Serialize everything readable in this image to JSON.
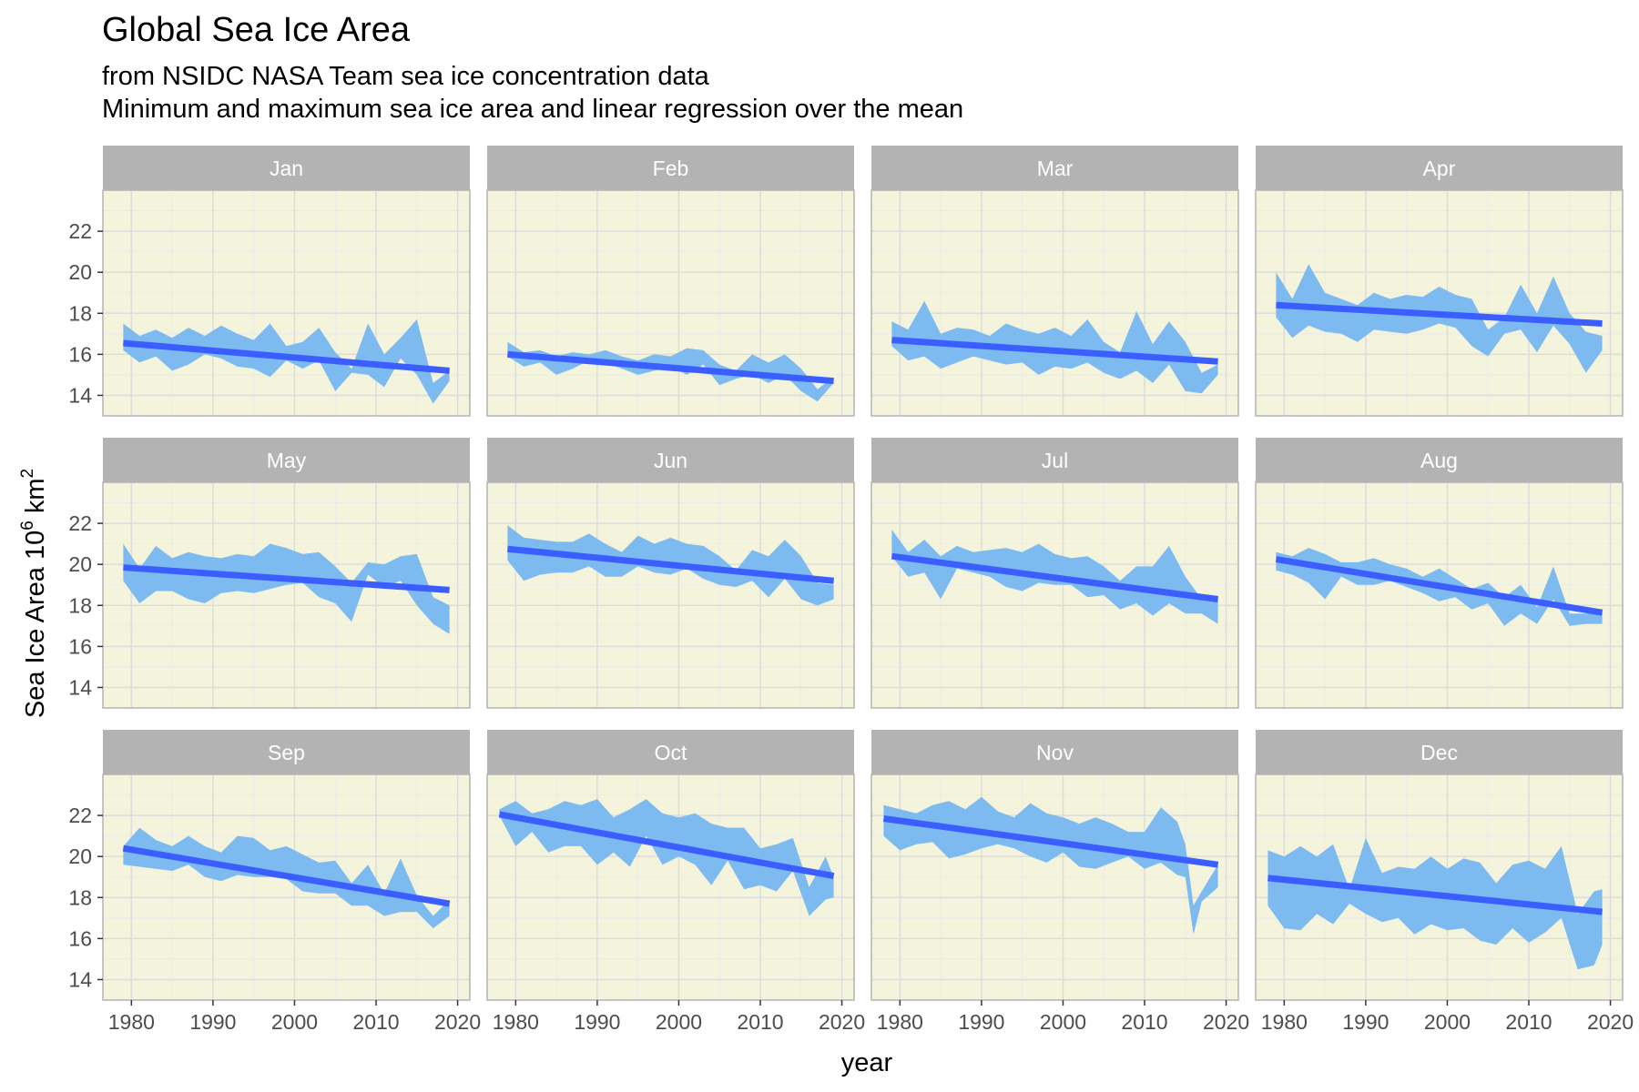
{
  "title": "Global Sea Ice Area",
  "subtitle_line1": "from NSIDC NASA Team sea ice concentration data",
  "subtitle_line2": "Minimum and maximum sea ice area and linear regression over the mean",
  "x_axis_title": "year",
  "y_axis_title_main": "Sea Ice Area 10",
  "y_axis_title_exp1": "6",
  "y_axis_title_unit": " km",
  "y_axis_title_exp2": "2",
  "colors": {
    "panel_background": "#f4f4dc",
    "strip_background": "#b3b3b3",
    "ribbon": "#7cbaf0",
    "regression_line": "#3a5eff",
    "grid_major": "#dcdcdc",
    "grid_minor": "#ebebeb",
    "panel_border": "#b3b3b3"
  },
  "chart_data": {
    "type": "area",
    "facet_layout": "4 columns x 3 rows",
    "xlim": [
      1976.5,
      2021.5
    ],
    "ylim": [
      13.0,
      24.0
    ],
    "x_ticks": [
      1980,
      1990,
      2000,
      2010,
      2020
    ],
    "y_ticks": [
      14,
      16,
      18,
      20,
      22
    ],
    "grid": true,
    "panels": [
      {
        "label": "Jan",
        "years": [
          1979,
          1981,
          1983,
          1985,
          1987,
          1989,
          1991,
          1993,
          1995,
          1997,
          1999,
          2001,
          2003,
          2005,
          2007,
          2009,
          2011,
          2013,
          2015,
          2017,
          2019
        ],
        "min": [
          16.2,
          15.6,
          15.9,
          15.2,
          15.5,
          16.0,
          15.8,
          15.4,
          15.3,
          14.9,
          15.7,
          15.3,
          15.7,
          14.2,
          15.1,
          15.0,
          14.4,
          15.8,
          15.0,
          13.6,
          14.7
        ],
        "max": [
          17.5,
          16.9,
          17.2,
          16.8,
          17.3,
          16.9,
          17.4,
          17.0,
          16.7,
          17.5,
          16.4,
          16.6,
          17.3,
          16.1,
          15.3,
          17.5,
          16.0,
          16.8,
          17.7,
          14.6,
          15.2
        ],
        "trend": [
          16.55,
          15.2
        ]
      },
      {
        "label": "Feb",
        "years": [
          1979,
          1981,
          1983,
          1985,
          1987,
          1989,
          1991,
          1993,
          1995,
          1997,
          1999,
          2001,
          2003,
          2005,
          2007,
          2009,
          2011,
          2013,
          2015,
          2017,
          2019
        ],
        "min": [
          15.9,
          15.4,
          15.6,
          15.0,
          15.3,
          15.7,
          15.6,
          15.3,
          15.0,
          15.2,
          15.4,
          15.0,
          15.5,
          14.5,
          14.8,
          15.0,
          14.6,
          15.0,
          14.2,
          13.7,
          14.6
        ],
        "max": [
          16.6,
          16.1,
          16.2,
          15.9,
          16.1,
          16.0,
          16.2,
          15.9,
          15.7,
          16.0,
          15.9,
          16.3,
          16.2,
          15.5,
          15.2,
          16.0,
          15.6,
          16.0,
          15.3,
          14.3,
          14.9
        ],
        "trend": [
          16.0,
          14.7
        ]
      },
      {
        "label": "Mar",
        "years": [
          1979,
          1981,
          1983,
          1985,
          1987,
          1989,
          1991,
          1993,
          1995,
          1997,
          1999,
          2001,
          2003,
          2005,
          2007,
          2009,
          2011,
          2013,
          2015,
          2017,
          2019
        ],
        "min": [
          16.4,
          15.7,
          15.9,
          15.3,
          15.6,
          15.9,
          15.7,
          15.5,
          15.6,
          15.0,
          15.4,
          15.3,
          15.6,
          15.1,
          14.8,
          15.2,
          14.6,
          15.5,
          14.2,
          14.1,
          15.0
        ],
        "max": [
          17.6,
          17.2,
          18.6,
          17.0,
          17.3,
          17.2,
          16.9,
          17.5,
          17.2,
          17.0,
          17.3,
          16.9,
          17.7,
          16.6,
          16.1,
          18.1,
          16.5,
          17.6,
          16.6,
          15.1,
          15.5
        ],
        "trend": [
          16.7,
          15.65
        ]
      },
      {
        "label": "Apr",
        "years": [
          1979,
          1981,
          1983,
          1985,
          1987,
          1989,
          1991,
          1993,
          1995,
          1997,
          1999,
          2001,
          2003,
          2005,
          2007,
          2009,
          2011,
          2013,
          2015,
          2017,
          2019
        ],
        "min": [
          17.8,
          16.8,
          17.4,
          17.1,
          17.0,
          16.6,
          17.2,
          17.1,
          17.0,
          17.2,
          17.5,
          17.3,
          16.4,
          15.9,
          17.0,
          17.2,
          16.1,
          17.4,
          16.5,
          15.1,
          16.2
        ],
        "max": [
          20.0,
          18.7,
          20.4,
          19.0,
          18.7,
          18.4,
          19.0,
          18.7,
          18.9,
          18.8,
          19.3,
          18.9,
          18.7,
          17.2,
          17.8,
          19.4,
          18.0,
          19.8,
          18.0,
          17.1,
          16.9
        ],
        "trend": [
          18.4,
          17.5
        ]
      },
      {
        "label": "May",
        "years": [
          1979,
          1981,
          1983,
          1985,
          1987,
          1989,
          1991,
          1993,
          1995,
          1997,
          1999,
          2001,
          2003,
          2005,
          2007,
          2009,
          2011,
          2013,
          2015,
          2017,
          2019
        ],
        "min": [
          19.2,
          18.1,
          18.7,
          18.7,
          18.3,
          18.1,
          18.6,
          18.7,
          18.6,
          18.8,
          19.0,
          19.1,
          18.4,
          18.1,
          17.2,
          19.5,
          18.9,
          19.2,
          18.0,
          17.1,
          16.6
        ],
        "max": [
          21.0,
          19.8,
          20.9,
          20.3,
          20.6,
          20.4,
          20.3,
          20.5,
          20.4,
          21.0,
          20.8,
          20.5,
          20.6,
          19.9,
          19.1,
          20.1,
          20.0,
          20.4,
          20.5,
          18.4,
          18.0
        ],
        "trend": [
          19.85,
          18.75
        ]
      },
      {
        "label": "Jun",
        "years": [
          1979,
          1981,
          1983,
          1985,
          1987,
          1989,
          1991,
          1993,
          1995,
          1997,
          1999,
          2001,
          2003,
          2005,
          2007,
          2009,
          2011,
          2013,
          2015,
          2017,
          2019
        ],
        "min": [
          20.2,
          19.2,
          19.5,
          19.6,
          19.6,
          19.9,
          19.4,
          19.4,
          19.9,
          19.6,
          19.5,
          19.8,
          19.3,
          19.0,
          18.9,
          19.2,
          18.4,
          19.3,
          18.3,
          18.0,
          18.3
        ],
        "max": [
          21.9,
          21.3,
          21.2,
          21.1,
          21.1,
          21.5,
          21.0,
          20.6,
          21.4,
          21.0,
          21.3,
          21.0,
          20.9,
          20.4,
          19.7,
          20.7,
          20.4,
          21.2,
          20.4,
          19.1,
          19.0
        ],
        "trend": [
          20.75,
          19.2
        ]
      },
      {
        "label": "Jul",
        "years": [
          1979,
          1981,
          1983,
          1985,
          1987,
          1989,
          1991,
          1993,
          1995,
          1997,
          1999,
          2001,
          2003,
          2005,
          2007,
          2009,
          2011,
          2013,
          2015,
          2017,
          2019
        ],
        "min": [
          20.4,
          19.4,
          19.6,
          18.3,
          19.8,
          19.6,
          19.4,
          18.9,
          18.7,
          19.1,
          19.0,
          19.0,
          18.4,
          18.5,
          17.8,
          18.1,
          17.5,
          18.1,
          17.6,
          17.6,
          17.1
        ],
        "max": [
          21.7,
          20.6,
          21.2,
          20.4,
          20.9,
          20.6,
          20.7,
          20.8,
          20.6,
          21.0,
          20.5,
          20.3,
          20.4,
          19.9,
          19.2,
          19.9,
          19.9,
          20.9,
          19.4,
          18.3,
          18.3
        ],
        "trend": [
          20.4,
          18.3
        ]
      },
      {
        "label": "Aug",
        "years": [
          1979,
          1981,
          1983,
          1985,
          1987,
          1989,
          1991,
          1993,
          1995,
          1997,
          1999,
          2001,
          2003,
          2005,
          2007,
          2009,
          2011,
          2013,
          2015,
          2017,
          2019
        ],
        "min": [
          19.7,
          19.5,
          19.1,
          18.3,
          19.4,
          19.0,
          19.0,
          19.2,
          18.9,
          18.6,
          18.2,
          18.4,
          17.8,
          18.1,
          17.0,
          17.6,
          17.1,
          18.3,
          17.0,
          17.1,
          17.1
        ],
        "max": [
          20.6,
          20.4,
          20.8,
          20.5,
          20.1,
          20.1,
          20.3,
          20.0,
          19.8,
          19.4,
          19.8,
          19.3,
          18.8,
          19.1,
          18.4,
          19.0,
          17.9,
          19.9,
          17.6,
          17.6,
          17.8
        ],
        "trend": [
          20.25,
          17.65
        ]
      },
      {
        "label": "Sep",
        "years": [
          1979,
          1981,
          1983,
          1985,
          1987,
          1989,
          1991,
          1993,
          1995,
          1997,
          1999,
          2001,
          2003,
          2005,
          2007,
          2009,
          2011,
          2013,
          2015,
          2017,
          2019
        ],
        "min": [
          19.6,
          19.5,
          19.4,
          19.3,
          19.6,
          19.0,
          18.8,
          19.1,
          19.0,
          19.0,
          18.9,
          18.3,
          18.2,
          18.2,
          17.6,
          17.6,
          17.1,
          17.3,
          17.3,
          16.5,
          17.1
        ],
        "max": [
          20.5,
          21.4,
          20.8,
          20.5,
          21.0,
          20.5,
          20.2,
          21.0,
          20.9,
          20.3,
          20.5,
          20.1,
          19.7,
          19.8,
          18.7,
          19.6,
          18.2,
          19.9,
          18.1,
          17.1,
          17.9
        ],
        "trend": [
          20.4,
          17.7
        ]
      },
      {
        "label": "Oct",
        "years": [
          1978,
          1980,
          1982,
          1984,
          1986,
          1988,
          1990,
          1992,
          1994,
          1996,
          1998,
          2000,
          2002,
          2004,
          2006,
          2008,
          2010,
          2012,
          2014,
          2016,
          2018,
          2019
        ],
        "min": [
          22.0,
          20.5,
          21.2,
          20.2,
          20.5,
          20.5,
          19.6,
          20.2,
          19.5,
          21.0,
          19.6,
          20.0,
          19.6,
          18.6,
          19.8,
          18.4,
          18.6,
          18.3,
          19.3,
          17.1,
          17.9,
          18.0
        ],
        "max": [
          22.3,
          22.7,
          22.1,
          22.3,
          22.7,
          22.5,
          22.8,
          21.9,
          22.3,
          22.8,
          22.1,
          21.9,
          22.1,
          21.6,
          21.4,
          21.4,
          20.4,
          20.6,
          20.9,
          18.5,
          20.0,
          19.0
        ],
        "trend": [
          22.05,
          19.05
        ]
      },
      {
        "label": "Nov",
        "years": [
          1978,
          1980,
          1982,
          1984,
          1986,
          1988,
          1990,
          1992,
          1994,
          1996,
          1998,
          2000,
          2002,
          2004,
          2006,
          2008,
          2010,
          2012,
          2014,
          2015,
          2016,
          2017,
          2019
        ],
        "min": [
          21.0,
          20.3,
          20.6,
          20.7,
          19.9,
          20.1,
          20.4,
          20.6,
          20.4,
          20.0,
          19.7,
          20.2,
          19.5,
          19.4,
          19.7,
          20.0,
          19.4,
          19.7,
          19.1,
          19.0,
          16.2,
          17.8,
          18.5
        ],
        "max": [
          22.5,
          22.3,
          22.1,
          22.5,
          22.7,
          22.3,
          22.9,
          22.2,
          21.9,
          22.6,
          22.1,
          21.9,
          21.6,
          21.9,
          21.6,
          21.2,
          21.2,
          22.4,
          21.7,
          20.6,
          17.6,
          18.3,
          19.6
        ],
        "trend": [
          21.85,
          19.6
        ]
      },
      {
        "label": "Dec",
        "years": [
          1978,
          1980,
          1982,
          1984,
          1986,
          1988,
          1990,
          1992,
          1994,
          1996,
          1998,
          2000,
          2002,
          2004,
          2006,
          2008,
          2010,
          2012,
          2014,
          2016,
          2018,
          2019
        ],
        "min": [
          17.6,
          16.5,
          16.4,
          17.2,
          16.7,
          17.7,
          17.2,
          16.8,
          17.0,
          16.2,
          16.7,
          16.4,
          16.5,
          15.9,
          15.7,
          16.5,
          15.8,
          16.3,
          17.0,
          14.5,
          14.7,
          15.7
        ],
        "max": [
          20.3,
          20.0,
          20.5,
          20.0,
          20.6,
          18.4,
          20.9,
          19.2,
          19.5,
          19.4,
          20.0,
          19.4,
          19.9,
          19.7,
          18.7,
          19.6,
          19.8,
          19.4,
          20.5,
          17.2,
          18.3,
          18.4
        ],
        "trend": [
          18.95,
          17.3
        ]
      }
    ]
  }
}
